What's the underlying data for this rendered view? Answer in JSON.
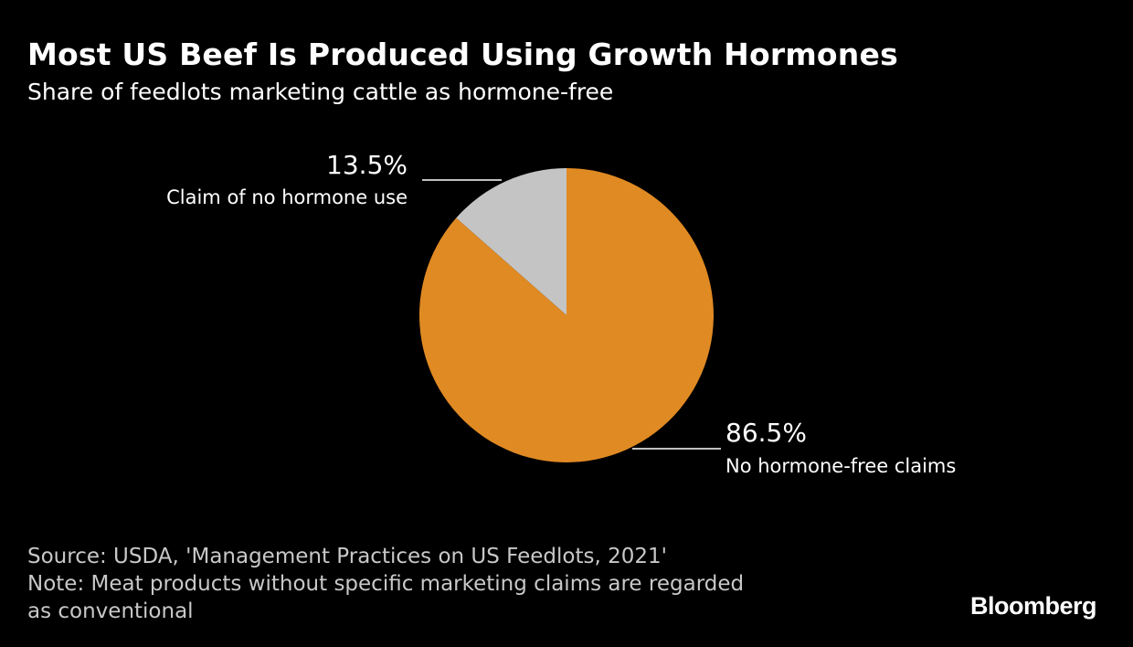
{
  "header": {
    "title": "Most US Beef Is Produced Using Growth Hormones",
    "subtitle": "Share of feedlots marketing cattle as hormone-free"
  },
  "chart_data": {
    "type": "pie",
    "title": "Most US Beef Is Produced Using Growth Hormones",
    "subtitle": "Share of feedlots marketing cattle as hormone-free",
    "slices": [
      {
        "label": "Claim of no hormone use",
        "value": 13.5,
        "value_label": "13.5%",
        "color": "#c4c4c4"
      },
      {
        "label": "No hormone-free claims",
        "value": 86.5,
        "value_label": "86.5%",
        "color": "#e08a23"
      }
    ]
  },
  "footer": {
    "source": "Source: USDA, 'Management Practices on US Feedlots, 2021'",
    "note_line1": "Note: Meat products without specific marketing claims are regarded",
    "note_line2": "as conventional"
  },
  "brand": "Bloomberg",
  "colors": {
    "background": "#000000",
    "text": "#ffffff",
    "muted_text": "#c8c8c8",
    "leader_line": "#ffffff"
  }
}
